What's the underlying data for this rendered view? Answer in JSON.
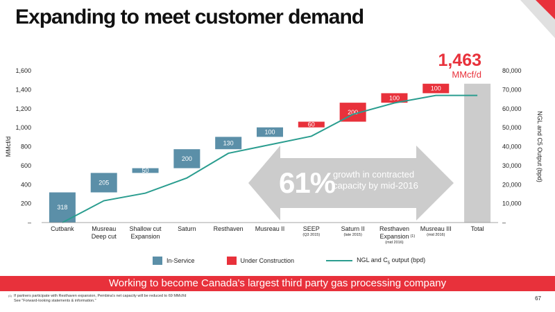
{
  "title": "Expanding to meet customer demand",
  "highlight": {
    "value": "1,463",
    "unit": "MMcf/d"
  },
  "callout": {
    "percent": "61%",
    "text": "growth in contracted capacity by mid-2016"
  },
  "legend": {
    "in_service": "In-Service",
    "under_construction": "Under Construction",
    "line": "NGL and C",
    "line_sub": "5",
    "line_tail": " output (bpd)"
  },
  "banner": "Working to become Canada's largest third party gas processing company",
  "footnote": {
    "marker": "(1)",
    "line1": "If partners participate with Resthaven expansion, Pembina's net capacity will be reduced to 69 MMcf/d",
    "line2": "See \"Forward-looking statements & information.\""
  },
  "page_number": "67",
  "colors": {
    "in_service": "#5b8fa8",
    "under_construction": "#e8313b",
    "line": "#2a9d8f",
    "total": "#cccccc",
    "arrow": "#cccccc"
  },
  "chart_data": {
    "type": "waterfall",
    "categories": [
      "Cutbank",
      "Musreau Deep cut",
      "Shallow cut Expansion",
      "Saturn",
      "Resthaven",
      "Musreau II",
      "SEEP",
      "Saturn II",
      "Resthaven Expansion (1)",
      "Musreau III",
      "Total"
    ],
    "category_lines": [
      [
        "Cutbank"
      ],
      [
        "Musreau",
        "Deep cut"
      ],
      [
        "Shallow cut",
        "Expansion"
      ],
      [
        "Saturn"
      ],
      [
        "Resthaven"
      ],
      [
        "Musreau II"
      ],
      [
        "SEEP"
      ],
      [
        "Saturn II"
      ],
      [
        "Resthaven",
        "Expansion"
      ],
      [
        "Musreau III"
      ],
      [
        "Total"
      ]
    ],
    "category_notes": [
      "",
      "",
      "",
      "",
      "",
      "",
      "(Q3 2015)",
      "(late 2015)",
      "(mid 2016)",
      "(mid 2016)",
      ""
    ],
    "footnote_markers": [
      "",
      "",
      "",
      "",
      "",
      "",
      "",
      "",
      "(1)",
      "",
      ""
    ],
    "values": [
      318,
      205,
      50,
      200,
      130,
      100,
      60,
      200,
      100,
      100,
      1463
    ],
    "status": [
      "in_service",
      "in_service",
      "in_service",
      "in_service",
      "in_service",
      "in_service",
      "under_construction",
      "under_construction",
      "under_construction",
      "under_construction",
      "total"
    ],
    "bar_labels": [
      "318",
      "205",
      "50",
      "200",
      "130",
      "100",
      "60",
      "200",
      "100",
      "100",
      ""
    ],
    "ylabel": "MMcf/d",
    "ylim": [
      0,
      1600
    ],
    "yticks": [
      0,
      200,
      400,
      600,
      800,
      1000,
      1200,
      1400,
      1600
    ],
    "ytick_labels": [
      "–",
      "200",
      "400",
      "600",
      "800",
      "1,000",
      "1,200",
      "1,400",
      "1,600"
    ],
    "y2label": "NGL and C5 Output (bpd)",
    "y2lim": [
      0,
      80000
    ],
    "y2tick_labels": [
      "–",
      "10,000",
      "20,000",
      "30,000",
      "40,000",
      "50,000",
      "60,000",
      "70,000",
      "80,000"
    ],
    "series": [
      {
        "name": "NGL and C5 output (bpd)",
        "type": "line",
        "axis": "right",
        "values": [
          0,
          11500,
          15500,
          23500,
          36500,
          41000,
          45500,
          57000,
          63000,
          67000,
          67000
        ]
      }
    ]
  }
}
